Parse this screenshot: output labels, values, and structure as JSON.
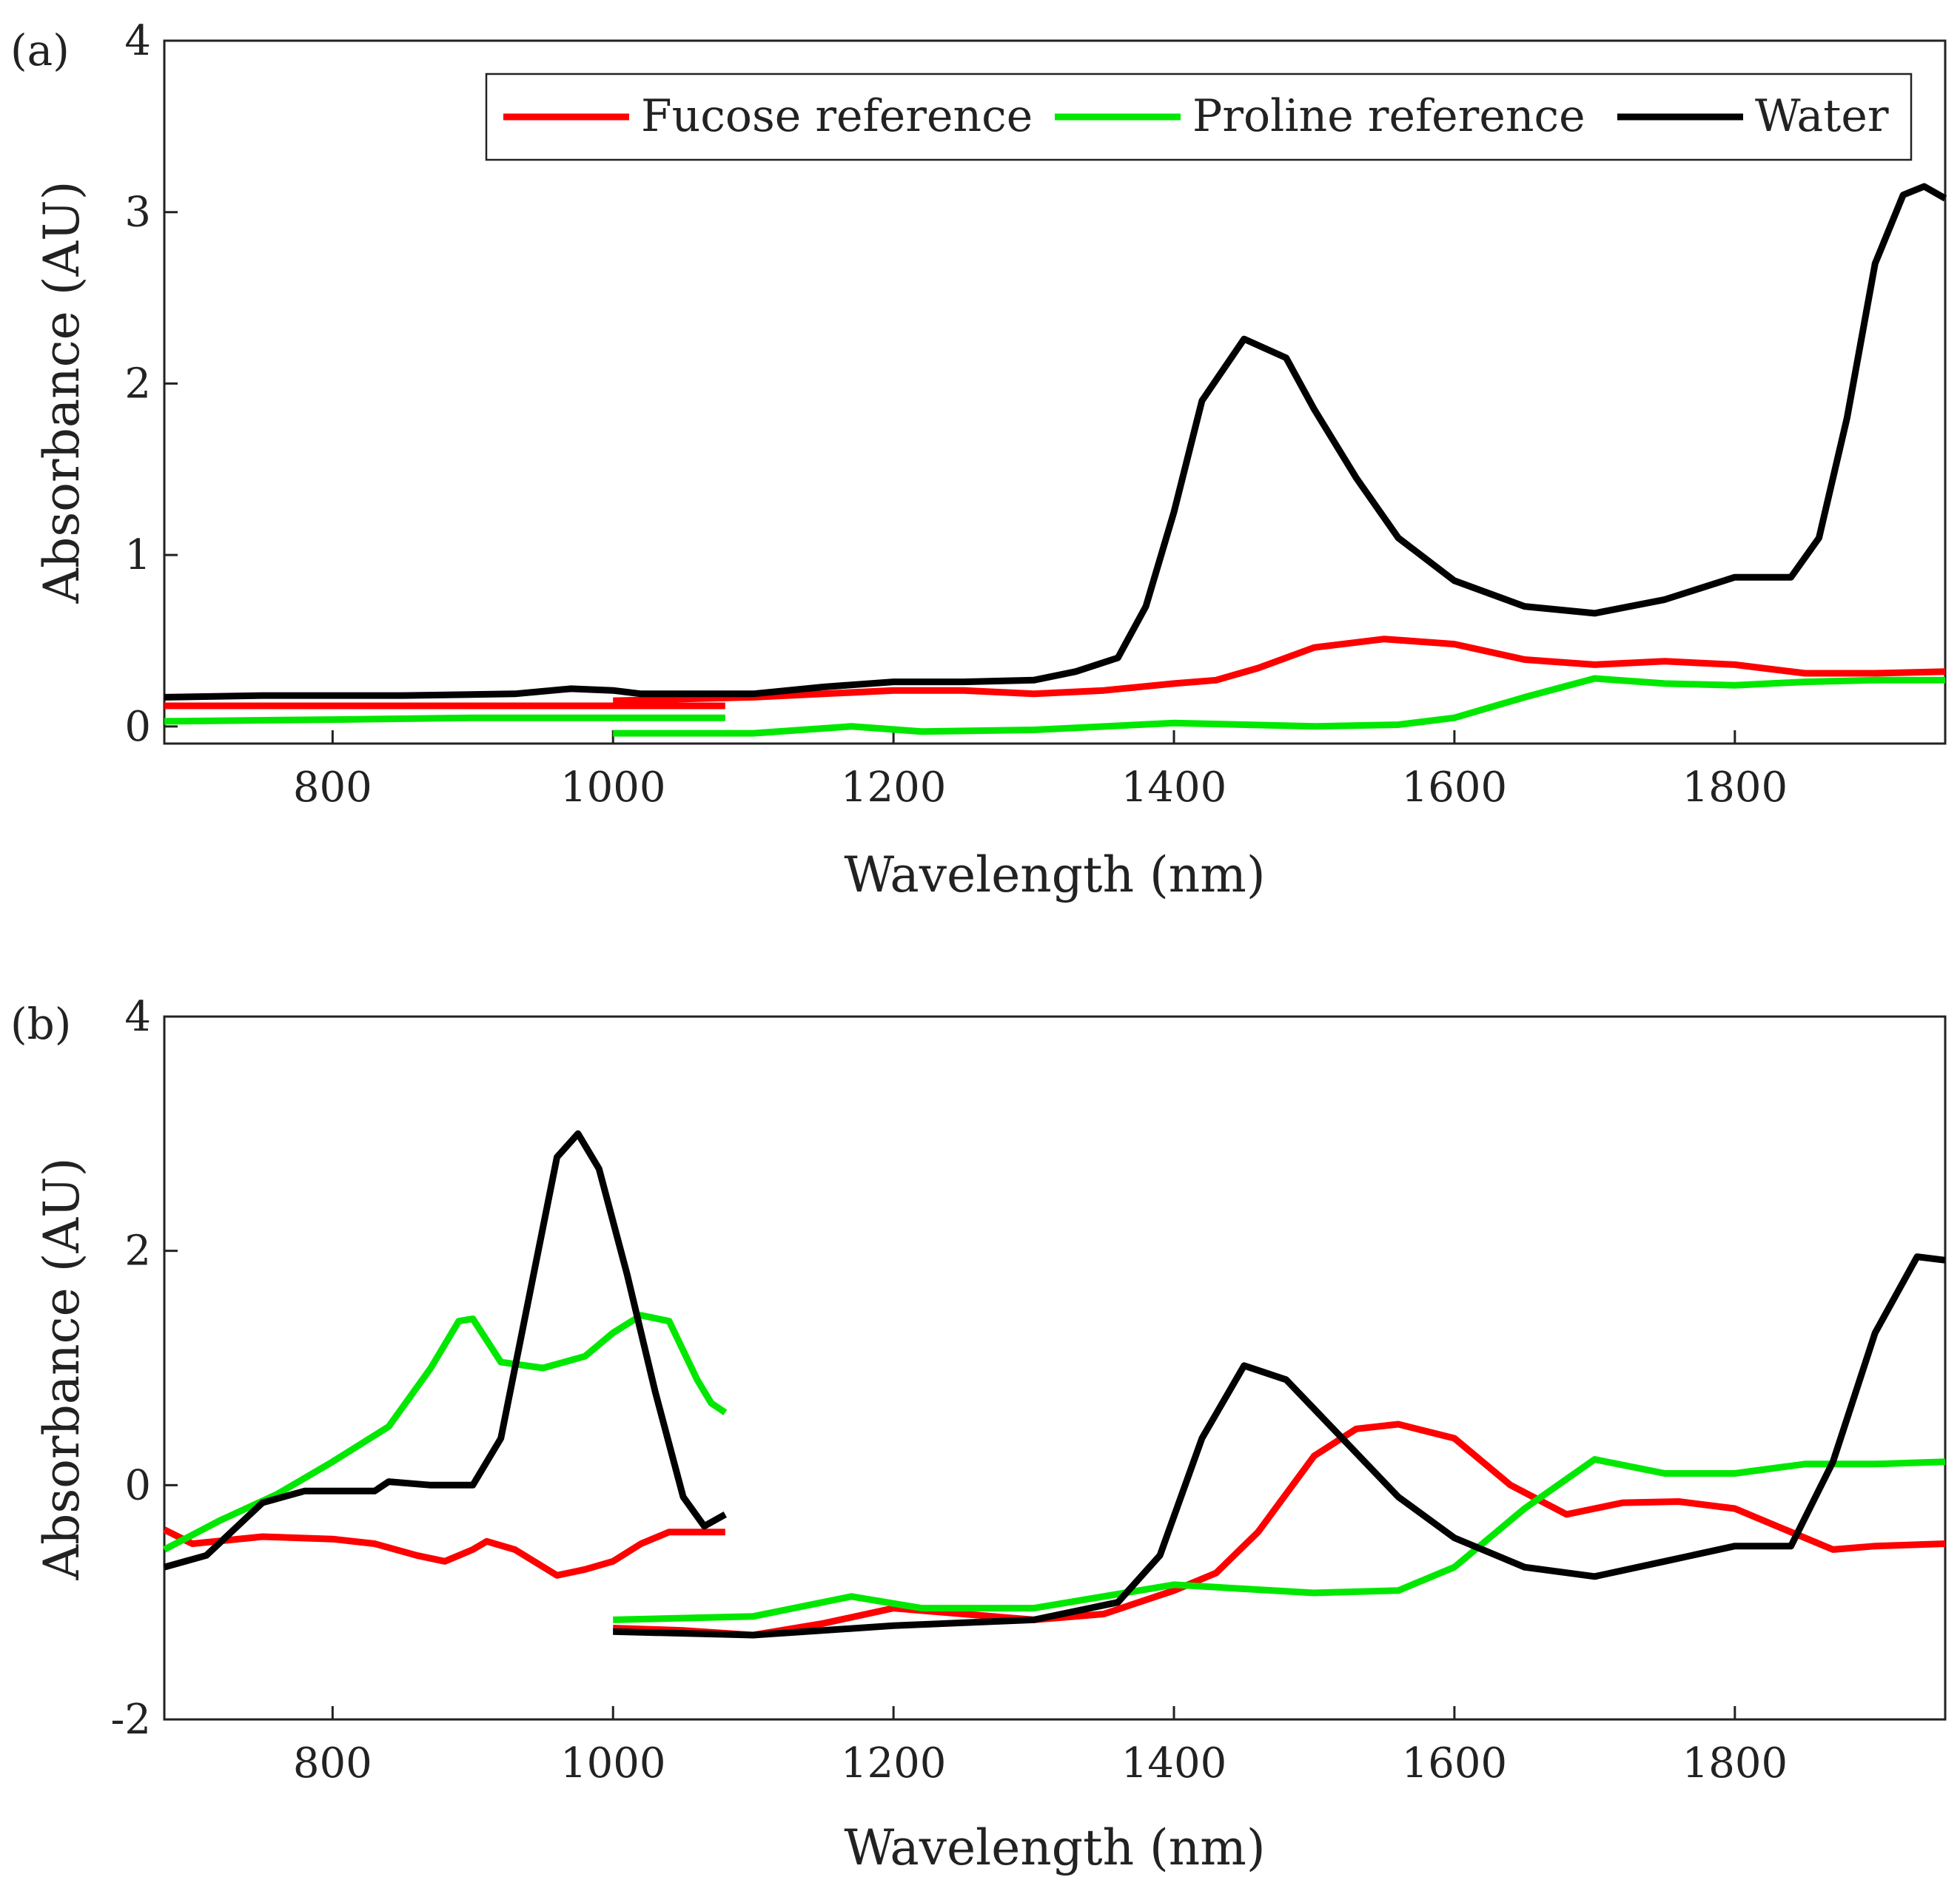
{
  "chart_data": [
    {
      "type": "line",
      "panel_label": "(a)",
      "xlabel": "Wavelength (nm)",
      "ylabel": "Absorbance (AU)",
      "xlim": [
        680,
        1950
      ],
      "ylim": [
        -0.1,
        4
      ],
      "xticks": [
        800,
        1000,
        1200,
        1400,
        1600,
        1800
      ],
      "yticks": [
        0,
        1,
        2,
        3,
        4
      ],
      "legend_position": "top-right",
      "legend": [
        "Fucose reference",
        "Proline reference",
        "Water"
      ],
      "series": [
        {
          "name": "Fucose reference",
          "color": "#ff0000",
          "segments": [
            [
              [
                680,
                0.12
              ],
              [
                800,
                0.12
              ],
              [
                900,
                0.12
              ],
              [
                1000,
                0.12
              ],
              [
                1080,
                0.12
              ]
            ],
            [
              [
                1000,
                0.15
              ],
              [
                1050,
                0.16
              ],
              [
                1100,
                0.17
              ],
              [
                1150,
                0.19
              ],
              [
                1200,
                0.21
              ],
              [
                1250,
                0.21
              ],
              [
                1300,
                0.19
              ],
              [
                1350,
                0.21
              ],
              [
                1400,
                0.25
              ],
              [
                1430,
                0.27
              ],
              [
                1460,
                0.34
              ],
              [
                1500,
                0.46
              ],
              [
                1550,
                0.51
              ],
              [
                1600,
                0.48
              ],
              [
                1650,
                0.39
              ],
              [
                1700,
                0.36
              ],
              [
                1750,
                0.38
              ],
              [
                1800,
                0.36
              ],
              [
                1850,
                0.31
              ],
              [
                1900,
                0.31
              ],
              [
                1950,
                0.32
              ]
            ]
          ]
        },
        {
          "name": "Proline reference",
          "color": "#00e800",
          "segments": [
            [
              [
                680,
                0.03
              ],
              [
                800,
                0.04
              ],
              [
                900,
                0.05
              ],
              [
                1000,
                0.05
              ],
              [
                1080,
                0.05
              ]
            ],
            [
              [
                1000,
                -0.04
              ],
              [
                1100,
                -0.04
              ],
              [
                1170,
                0.0
              ],
              [
                1220,
                -0.03
              ],
              [
                1300,
                -0.02
              ],
              [
                1400,
                0.02
              ],
              [
                1500,
                0.0
              ],
              [
                1560,
                0.01
              ],
              [
                1600,
                0.05
              ],
              [
                1650,
                0.17
              ],
              [
                1700,
                0.28
              ],
              [
                1750,
                0.25
              ],
              [
                1800,
                0.24
              ],
              [
                1850,
                0.26
              ],
              [
                1900,
                0.27
              ],
              [
                1950,
                0.27
              ]
            ]
          ]
        },
        {
          "name": "Water",
          "color": "#000000",
          "segments": [
            [
              [
                680,
                0.17
              ],
              [
                750,
                0.18
              ],
              [
                850,
                0.18
              ],
              [
                930,
                0.19
              ],
              [
                970,
                0.22
              ],
              [
                1000,
                0.21
              ],
              [
                1020,
                0.19
              ],
              [
                1100,
                0.19
              ],
              [
                1150,
                0.23
              ],
              [
                1200,
                0.26
              ],
              [
                1250,
                0.26
              ],
              [
                1300,
                0.27
              ],
              [
                1330,
                0.32
              ],
              [
                1360,
                0.4
              ],
              [
                1380,
                0.7
              ],
              [
                1400,
                1.25
              ],
              [
                1420,
                1.9
              ],
              [
                1450,
                2.26
              ],
              [
                1480,
                2.15
              ],
              [
                1500,
                1.85
              ],
              [
                1530,
                1.45
              ],
              [
                1560,
                1.1
              ],
              [
                1600,
                0.85
              ],
              [
                1650,
                0.7
              ],
              [
                1700,
                0.66
              ],
              [
                1750,
                0.74
              ],
              [
                1800,
                0.87
              ],
              [
                1840,
                0.87
              ],
              [
                1860,
                1.1
              ],
              [
                1880,
                1.8
              ],
              [
                1900,
                2.7
              ],
              [
                1920,
                3.1
              ],
              [
                1935,
                3.15
              ],
              [
                1950,
                3.08
              ]
            ]
          ]
        }
      ]
    },
    {
      "type": "line",
      "panel_label": "(b)",
      "xlabel": "Wavelength (nm)",
      "ylabel": "Absorbance (AU)",
      "xlim": [
        680,
        1950
      ],
      "ylim": [
        -2,
        4
      ],
      "xticks": [
        800,
        1000,
        1200,
        1400,
        1600,
        1800
      ],
      "yticks": [
        -2,
        0,
        2,
        4
      ],
      "series": [
        {
          "name": "Fucose reference",
          "color": "#ff0000",
          "segments": [
            [
              [
                680,
                -0.38
              ],
              [
                700,
                -0.5
              ],
              [
                750,
                -0.44
              ],
              [
                800,
                -0.46
              ],
              [
                830,
                -0.5
              ],
              [
                860,
                -0.6
              ],
              [
                880,
                -0.65
              ],
              [
                900,
                -0.55
              ],
              [
                910,
                -0.48
              ],
              [
                930,
                -0.55
              ],
              [
                960,
                -0.77
              ],
              [
                980,
                -0.72
              ],
              [
                1000,
                -0.65
              ],
              [
                1020,
                -0.5
              ],
              [
                1040,
                -0.4
              ],
              [
                1060,
                -0.4
              ],
              [
                1080,
                -0.4
              ]
            ],
            [
              [
                1000,
                -1.22
              ],
              [
                1050,
                -1.24
              ],
              [
                1100,
                -1.28
              ],
              [
                1150,
                -1.18
              ],
              [
                1200,
                -1.05
              ],
              [
                1250,
                -1.1
              ],
              [
                1300,
                -1.15
              ],
              [
                1350,
                -1.1
              ],
              [
                1400,
                -0.9
              ],
              [
                1430,
                -0.75
              ],
              [
                1460,
                -0.4
              ],
              [
                1500,
                0.25
              ],
              [
                1530,
                0.48
              ],
              [
                1560,
                0.52
              ],
              [
                1600,
                0.4
              ],
              [
                1640,
                0.0
              ],
              [
                1680,
                -0.25
              ],
              [
                1720,
                -0.15
              ],
              [
                1760,
                -0.14
              ],
              [
                1800,
                -0.2
              ],
              [
                1840,
                -0.4
              ],
              [
                1870,
                -0.55
              ],
              [
                1900,
                -0.52
              ],
              [
                1950,
                -0.5
              ]
            ]
          ]
        },
        {
          "name": "Proline reference",
          "color": "#00e800",
          "segments": [
            [
              [
                680,
                -0.55
              ],
              [
                720,
                -0.3
              ],
              [
                760,
                -0.08
              ],
              [
                800,
                0.2
              ],
              [
                840,
                0.5
              ],
              [
                870,
                1.0
              ],
              [
                890,
                1.4
              ],
              [
                900,
                1.42
              ],
              [
                920,
                1.05
              ],
              [
                950,
                1.0
              ],
              [
                980,
                1.1
              ],
              [
                1000,
                1.3
              ],
              [
                1020,
                1.45
              ],
              [
                1040,
                1.4
              ],
              [
                1060,
                0.9
              ],
              [
                1070,
                0.7
              ],
              [
                1080,
                0.62
              ]
            ],
            [
              [
                1000,
                -1.15
              ],
              [
                1100,
                -1.12
              ],
              [
                1170,
                -0.95
              ],
              [
                1220,
                -1.05
              ],
              [
                1300,
                -1.05
              ],
              [
                1400,
                -0.85
              ],
              [
                1500,
                -0.92
              ],
              [
                1560,
                -0.9
              ],
              [
                1600,
                -0.7
              ],
              [
                1650,
                -0.2
              ],
              [
                1700,
                0.22
              ],
              [
                1750,
                0.1
              ],
              [
                1800,
                0.1
              ],
              [
                1850,
                0.18
              ],
              [
                1900,
                0.18
              ],
              [
                1950,
                0.2
              ]
            ]
          ]
        },
        {
          "name": "Water",
          "color": "#000000",
          "segments": [
            [
              [
                680,
                -0.7
              ],
              [
                710,
                -0.6
              ],
              [
                750,
                -0.15
              ],
              [
                780,
                -0.05
              ],
              [
                830,
                -0.05
              ],
              [
                840,
                0.03
              ],
              [
                870,
                0.0
              ],
              [
                900,
                0.0
              ],
              [
                920,
                0.4
              ],
              [
                940,
                1.6
              ],
              [
                960,
                2.8
              ],
              [
                975,
                3.0
              ],
              [
                990,
                2.7
              ],
              [
                1010,
                1.8
              ],
              [
                1030,
                0.8
              ],
              [
                1050,
                -0.1
              ],
              [
                1065,
                -0.35
              ],
              [
                1080,
                -0.25
              ]
            ],
            [
              [
                1000,
                -1.25
              ],
              [
                1100,
                -1.28
              ],
              [
                1200,
                -1.2
              ],
              [
                1300,
                -1.15
              ],
              [
                1360,
                -1.0
              ],
              [
                1390,
                -0.6
              ],
              [
                1420,
                0.4
              ],
              [
                1450,
                1.02
              ],
              [
                1480,
                0.9
              ],
              [
                1520,
                0.4
              ],
              [
                1560,
                -0.1
              ],
              [
                1600,
                -0.45
              ],
              [
                1650,
                -0.7
              ],
              [
                1700,
                -0.78
              ],
              [
                1750,
                -0.65
              ],
              [
                1800,
                -0.52
              ],
              [
                1840,
                -0.52
              ],
              [
                1870,
                0.2
              ],
              [
                1900,
                1.3
              ],
              [
                1930,
                1.95
              ],
              [
                1950,
                1.92
              ]
            ]
          ]
        }
      ]
    }
  ]
}
